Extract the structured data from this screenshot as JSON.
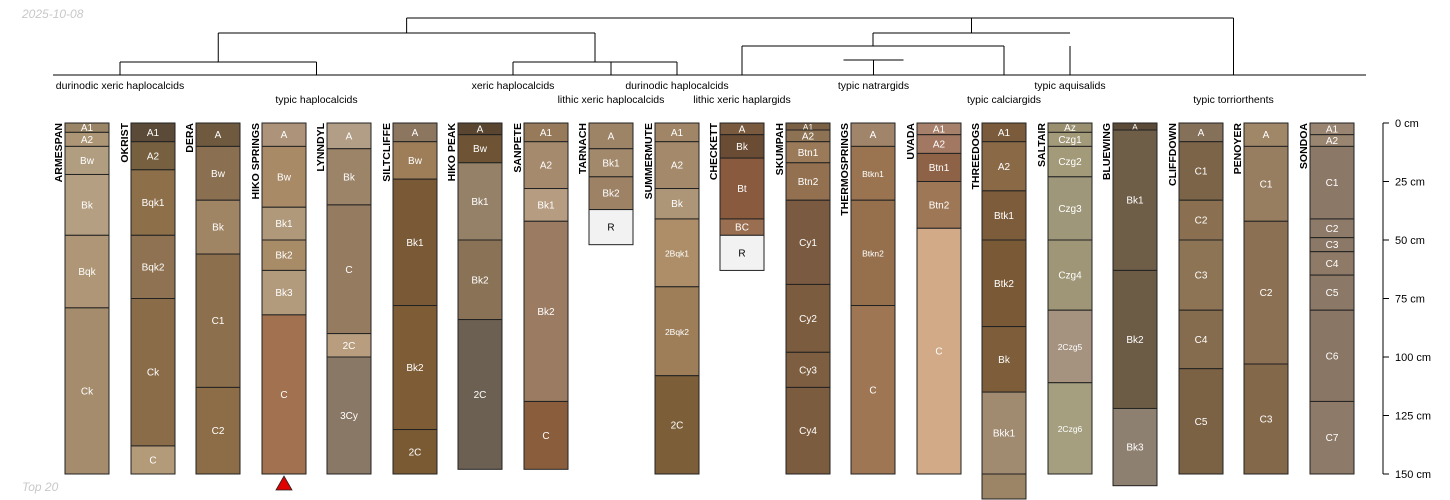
{
  "meta": {
    "date": "2025-10-08",
    "footer": "Top 20"
  },
  "depth_axis": {
    "unit": "cm",
    "max_depth": 150,
    "ticks": [
      0,
      25,
      50,
      75,
      100,
      125,
      150
    ],
    "labels": [
      "0 cm",
      "25 cm",
      "50 cm",
      "75 cm",
      "100 cm",
      "125 cm",
      "150 cm"
    ]
  },
  "groups": [
    {
      "label": "durinodic xeric haplocalcids",
      "members": [
        "ARMESPAN",
        "OKRIST"
      ]
    },
    {
      "label": "typic haplocalcids",
      "members": [
        "DERA",
        "HIKO SPRINGS",
        "LYNNDYL",
        "SILTCLIFFE"
      ]
    },
    {
      "label": "xeric haplocalcids",
      "members": [
        "HIKO PEAK",
        "SANPETE"
      ]
    },
    {
      "label": "lithic xeric haplocalcids",
      "members": [
        "TARNACH"
      ]
    },
    {
      "label": "durinodic haplocalcids",
      "members": [
        "SUMMERMUTE"
      ]
    },
    {
      "label": "lithic xeric haplargids",
      "members": [
        "CHECKETT"
      ]
    },
    {
      "label": "typic natrargids",
      "members": [
        "SKUMPAH",
        "THERMOSPRINGS",
        "UVADA"
      ]
    },
    {
      "label": "typic calciargids",
      "members": [
        "THREEDOGS"
      ]
    },
    {
      "label": "typic aquisalids",
      "members": [
        "SALTAIR"
      ]
    },
    {
      "label": "typic torriorthents",
      "members": [
        "BLUEWING",
        "CLIFFDOWN",
        "PENOYER",
        "SONDOA"
      ]
    }
  ],
  "profiles": [
    {
      "name": "ARMESPAN",
      "horizons": [
        {
          "name": "A1",
          "top": 0,
          "bottom": 4,
          "color": "#9a8666"
        },
        {
          "name": "A2",
          "top": 4,
          "bottom": 10,
          "color": "#ad9676"
        },
        {
          "name": "Bw",
          "top": 10,
          "bottom": 22,
          "color": "#b19d80"
        },
        {
          "name": "Bk",
          "top": 22,
          "bottom": 48,
          "color": "#b59f82"
        },
        {
          "name": "Bqk",
          "top": 48,
          "bottom": 79,
          "color": "#ae9676"
        },
        {
          "name": "Ck",
          "top": 79,
          "bottom": 150,
          "color": "#a48c6c"
        }
      ]
    },
    {
      "name": "OKRIST",
      "horizons": [
        {
          "name": "A1",
          "top": 0,
          "bottom": 8,
          "color": "#5a4a37"
        },
        {
          "name": "A2",
          "top": 8,
          "bottom": 20,
          "color": "#76603f"
        },
        {
          "name": "Bqk1",
          "top": 20,
          "bottom": 48,
          "color": "#8d6f4a"
        },
        {
          "name": "Bqk2",
          "top": 48,
          "bottom": 75,
          "color": "#8f7251"
        },
        {
          "name": "Ck",
          "top": 75,
          "bottom": 138,
          "color": "#8a6c49"
        },
        {
          "name": "C",
          "top": 138,
          "bottom": 150,
          "color": "#b39a78"
        }
      ]
    },
    {
      "name": "DERA",
      "horizons": [
        {
          "name": "A",
          "top": 0,
          "bottom": 10,
          "color": "#6f5a40"
        },
        {
          "name": "Bw",
          "top": 10,
          "bottom": 33,
          "color": "#8a7050"
        },
        {
          "name": "Bk",
          "top": 33,
          "bottom": 56,
          "color": "#a08565"
        },
        {
          "name": "C1",
          "top": 56,
          "bottom": 113,
          "color": "#8c6f4c"
        },
        {
          "name": "C2",
          "top": 113,
          "bottom": 150,
          "color": "#8c6d47"
        }
      ]
    },
    {
      "name": "HIKO SPRINGS",
      "horizons": [
        {
          "name": "A",
          "top": 0,
          "bottom": 10,
          "color": "#ad937a"
        },
        {
          "name": "Bw",
          "top": 10,
          "bottom": 36,
          "color": "#a98a67"
        },
        {
          "name": "Bk1",
          "top": 36,
          "bottom": 50,
          "color": "#b0987a"
        },
        {
          "name": "Bk2",
          "top": 50,
          "bottom": 63,
          "color": "#a88c68"
        },
        {
          "name": "Bk3",
          "top": 63,
          "bottom": 82,
          "color": "#b29a7c"
        },
        {
          "name": "C",
          "top": 82,
          "bottom": 150,
          "color": "#a27250"
        }
      ]
    },
    {
      "name": "LYNNDYL",
      "horizons": [
        {
          "name": "A",
          "top": 0,
          "bottom": 11,
          "color": "#b29e86"
        },
        {
          "name": "Bk",
          "top": 11,
          "bottom": 35,
          "color": "#9c8468"
        },
        {
          "name": "C",
          "top": 35,
          "bottom": 90,
          "color": "#957b60"
        },
        {
          "name": "2C",
          "top": 90,
          "bottom": 100,
          "color": "#b89e7e"
        },
        {
          "name": "3Cy",
          "top": 100,
          "bottom": 150,
          "color": "#8a7866"
        }
      ]
    },
    {
      "name": "SILTCLIFFE",
      "horizons": [
        {
          "name": "A",
          "top": 0,
          "bottom": 8,
          "color": "#8c7660"
        },
        {
          "name": "Bw",
          "top": 8,
          "bottom": 24,
          "color": "#9d7e58"
        },
        {
          "name": "Bk1",
          "top": 24,
          "bottom": 78,
          "color": "#7a5a36"
        },
        {
          "name": "Bk2",
          "top": 78,
          "bottom": 131,
          "color": "#7e5c35"
        },
        {
          "name": "2C",
          "top": 131,
          "bottom": 150,
          "color": "#7a5a33"
        }
      ]
    },
    {
      "name": "HIKO PEAK",
      "horizons": [
        {
          "name": "A",
          "top": 0,
          "bottom": 5,
          "color": "#5a4630"
        },
        {
          "name": "Bw",
          "top": 5,
          "bottom": 17,
          "color": "#6e5434"
        },
        {
          "name": "Bk1",
          "top": 17,
          "bottom": 50,
          "color": "#948168"
        },
        {
          "name": "Bk2",
          "top": 50,
          "bottom": 84,
          "color": "#8a7256"
        },
        {
          "name": "2C",
          "top": 84,
          "bottom": 148,
          "color": "#6c6052"
        }
      ]
    },
    {
      "name": "SANPETE",
      "horizons": [
        {
          "name": "A1",
          "top": 0,
          "bottom": 8,
          "color": "#977a5a"
        },
        {
          "name": "A2",
          "top": 8,
          "bottom": 28,
          "color": "#a58a6e"
        },
        {
          "name": "Bk1",
          "top": 28,
          "bottom": 42,
          "color": "#b69c80"
        },
        {
          "name": "Bk2",
          "top": 42,
          "bottom": 119,
          "color": "#9b7c62"
        },
        {
          "name": "C",
          "top": 119,
          "bottom": 148,
          "color": "#8a5e3c"
        }
      ]
    },
    {
      "name": "TARNACH",
      "horizons": [
        {
          "name": "A",
          "top": 0,
          "bottom": 11,
          "color": "#9d8466"
        },
        {
          "name": "Bk1",
          "top": 11,
          "bottom": 23,
          "color": "#a2896b"
        },
        {
          "name": "Bk2",
          "top": 23,
          "bottom": 37,
          "color": "#9d8266"
        },
        {
          "name": "R",
          "top": 37,
          "bottom": 52,
          "color": "#f2f2f2"
        }
      ]
    },
    {
      "name": "SUMMERMUTE",
      "horizons": [
        {
          "name": "A1",
          "top": 0,
          "bottom": 8,
          "color": "#a08666"
        },
        {
          "name": "A2",
          "top": 8,
          "bottom": 28,
          "color": "#a48a6a"
        },
        {
          "name": "Bk",
          "top": 28,
          "bottom": 41,
          "color": "#ad9578"
        },
        {
          "name": "2Bqk1",
          "top": 41,
          "bottom": 70,
          "color": "#ad8e68"
        },
        {
          "name": "2Bqk2",
          "top": 70,
          "bottom": 108,
          "color": "#9e7e58"
        },
        {
          "name": "2C",
          "top": 108,
          "bottom": 150,
          "color": "#7c5e38"
        }
      ]
    },
    {
      "name": "CHECKETT",
      "horizons": [
        {
          "name": "A",
          "top": 0,
          "bottom": 5,
          "color": "#7a5a3e"
        },
        {
          "name": "Bk",
          "top": 5,
          "bottom": 15,
          "color": "#6a4c34"
        },
        {
          "name": "Bt",
          "top": 15,
          "bottom": 41,
          "color": "#8a5a3e"
        },
        {
          "name": "BC",
          "top": 41,
          "bottom": 48,
          "color": "#9a6e50"
        },
        {
          "name": "R",
          "top": 48,
          "bottom": 63,
          "color": "#f2f2f2"
        }
      ]
    },
    {
      "name": "SKUMPAH",
      "horizons": [
        {
          "name": "A1",
          "top": 0,
          "bottom": 3,
          "color": "#7a6044"
        },
        {
          "name": "A2",
          "top": 3,
          "bottom": 8,
          "color": "#8e7254"
        },
        {
          "name": "Btn1",
          "top": 8,
          "bottom": 17,
          "color": "#9a7a58"
        },
        {
          "name": "Btn2",
          "top": 17,
          "bottom": 33,
          "color": "#927050"
        },
        {
          "name": "Cy1",
          "top": 33,
          "bottom": 69,
          "color": "#7a5a40"
        },
        {
          "name": "Cy2",
          "top": 69,
          "bottom": 98,
          "color": "#7c5c3e"
        },
        {
          "name": "Cy3",
          "top": 98,
          "bottom": 113,
          "color": "#7e5e40"
        },
        {
          "name": "Cy4",
          "top": 113,
          "bottom": 150,
          "color": "#7c5c3e"
        }
      ]
    },
    {
      "name": "THERMOSPRINGS",
      "horizons": [
        {
          "name": "A",
          "top": 0,
          "bottom": 10,
          "color": "#a0856a"
        },
        {
          "name": "Btkn1",
          "top": 10,
          "bottom": 33,
          "color": "#9a7450"
        },
        {
          "name": "Btkn2",
          "top": 33,
          "bottom": 78,
          "color": "#96704c"
        },
        {
          "name": "C",
          "top": 78,
          "bottom": 150,
          "color": "#9e7654"
        }
      ]
    },
    {
      "name": "UVADA",
      "horizons": [
        {
          "name": "A1",
          "top": 0,
          "bottom": 5,
          "color": "#a6806a"
        },
        {
          "name": "A2",
          "top": 5,
          "bottom": 13,
          "color": "#a27862"
        },
        {
          "name": "Btn1",
          "top": 13,
          "bottom": 25,
          "color": "#8e6246"
        },
        {
          "name": "Btn2",
          "top": 25,
          "bottom": 45,
          "color": "#9e7856"
        },
        {
          "name": "C",
          "top": 45,
          "bottom": 150,
          "color": "#d2aa88"
        }
      ]
    },
    {
      "name": "THREEDOGS",
      "horizons": [
        {
          "name": "A1",
          "top": 0,
          "bottom": 8,
          "color": "#7a5c3c"
        },
        {
          "name": "A2",
          "top": 8,
          "bottom": 29,
          "color": "#8a6a46"
        },
        {
          "name": "Btk1",
          "top": 29,
          "bottom": 50,
          "color": "#7c5c3a"
        },
        {
          "name": "Btk2",
          "top": 50,
          "bottom": 87,
          "color": "#7a5a36"
        },
        {
          "name": "Bk",
          "top": 87,
          "bottom": 115,
          "color": "#7e5e3a"
        },
        {
          "name": "Bkk1",
          "top": 115,
          "bottom": 150,
          "color": "#a08a70"
        },
        {
          "name": "",
          "top": 150,
          "bottom": 162,
          "color": "#9c8466"
        }
      ]
    },
    {
      "name": "SALTAIR",
      "horizons": [
        {
          "name": "Az",
          "top": 0,
          "bottom": 4,
          "color": "#9a9070"
        },
        {
          "name": "Czg1",
          "top": 4,
          "bottom": 10,
          "color": "#a39a7a"
        },
        {
          "name": "Czg2",
          "top": 10,
          "bottom": 23,
          "color": "#a39a7a"
        },
        {
          "name": "Czg3",
          "top": 23,
          "bottom": 50,
          "color": "#9f977a"
        },
        {
          "name": "Czg4",
          "top": 50,
          "bottom": 80,
          "color": "#9e9676"
        },
        {
          "name": "2Czg5",
          "top": 80,
          "bottom": 111,
          "color": "#a59380"
        },
        {
          "name": "2Czg6",
          "top": 111,
          "bottom": 150,
          "color": "#a59f80"
        }
      ]
    },
    {
      "name": "BLUEWING",
      "horizons": [
        {
          "name": "A",
          "top": 0,
          "bottom": 3,
          "color": "#5c4a38"
        },
        {
          "name": "Bk1",
          "top": 3,
          "bottom": 63,
          "color": "#6e5e48"
        },
        {
          "name": "Bk2",
          "top": 63,
          "bottom": 122,
          "color": "#6c5c46"
        },
        {
          "name": "Bk3",
          "top": 122,
          "bottom": 155,
          "color": "#8e8070"
        }
      ]
    },
    {
      "name": "CLIFFDOWN",
      "horizons": [
        {
          "name": "A",
          "top": 0,
          "bottom": 8,
          "color": "#85705a"
        },
        {
          "name": "C1",
          "top": 8,
          "bottom": 33,
          "color": "#7c6448"
        },
        {
          "name": "C2",
          "top": 33,
          "bottom": 50,
          "color": "#8a7050"
        },
        {
          "name": "C3",
          "top": 50,
          "bottom": 80,
          "color": "#8c7454"
        },
        {
          "name": "C4",
          "top": 80,
          "bottom": 105,
          "color": "#866c4e"
        },
        {
          "name": "C5",
          "top": 105,
          "bottom": 150,
          "color": "#7c6244"
        }
      ]
    },
    {
      "name": "PENOYER",
      "horizons": [
        {
          "name": "A",
          "top": 0,
          "bottom": 10,
          "color": "#a08768"
        },
        {
          "name": "C1",
          "top": 10,
          "bottom": 42,
          "color": "#987e60"
        },
        {
          "name": "C2",
          "top": 42,
          "bottom": 103,
          "color": "#8c7054"
        },
        {
          "name": "C3",
          "top": 103,
          "bottom": 150,
          "color": "#84684a"
        }
      ]
    },
    {
      "name": "SONDOA",
      "horizons": [
        {
          "name": "A1",
          "top": 0,
          "bottom": 5,
          "color": "#988470"
        },
        {
          "name": "A2",
          "top": 5,
          "bottom": 10,
          "color": "#9a8670"
        },
        {
          "name": "C1",
          "top": 10,
          "bottom": 41,
          "color": "#8c7866"
        },
        {
          "name": "C2",
          "top": 41,
          "bottom": 49,
          "color": "#8e7a68"
        },
        {
          "name": "C3",
          "top": 49,
          "bottom": 55,
          "color": "#8c7866"
        },
        {
          "name": "C4",
          "top": 55,
          "bottom": 65,
          "color": "#8e7a66"
        },
        {
          "name": "C5",
          "top": 65,
          "bottom": 80,
          "color": "#8c7866"
        },
        {
          "name": "C6",
          "top": 80,
          "bottom": 119,
          "color": "#8a7664"
        },
        {
          "name": "C7",
          "top": 119,
          "bottom": 150,
          "color": "#8e7a68"
        }
      ]
    }
  ],
  "marker": {
    "profile": "HIKO SPRINGS",
    "color": "#e00000"
  }
}
